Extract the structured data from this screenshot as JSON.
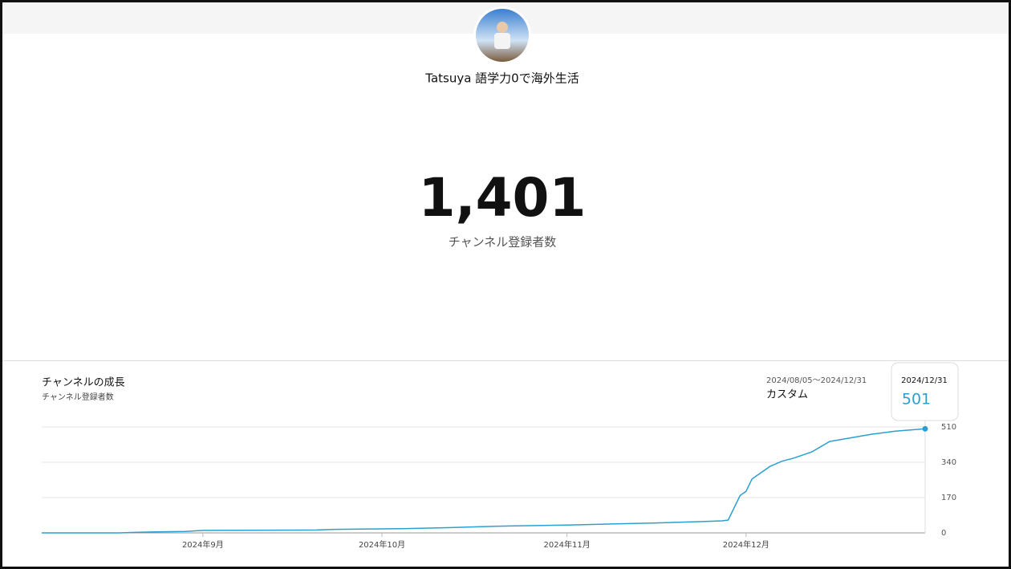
{
  "header": {
    "channel_name": "Tatsuya 語学力0で海外生活"
  },
  "summary": {
    "subscriber_count": "1,401",
    "label": "チャンネル登録者数"
  },
  "chart_data": {
    "type": "line",
    "title": "チャンネルの成長",
    "subtitle": "チャンネル登録者数",
    "date_range": "2024/08/05～2024/12/31",
    "period": "カスタム",
    "x": [
      "2024/08/05",
      "2024/08/18",
      "2024/08/21",
      "2024/08/24",
      "2024/08/29",
      "2024/09/01",
      "2024/09/20",
      "2024/09/23",
      "2024/10/04",
      "2024/10/12",
      "2024/10/20",
      "2024/11/01",
      "2024/11/16",
      "2024/11/27",
      "2024/11/28",
      "2024/11/30",
      "2024/12/01",
      "2024/12/02",
      "2024/12/05",
      "2024/12/07",
      "2024/12/09",
      "2024/12/12",
      "2024/12/15",
      "2024/12/18",
      "2024/12/22",
      "2024/12/26",
      "2024/12/31"
    ],
    "series": [
      {
        "color": "#2c9fd1",
        "values": [
          0,
          0,
          3,
          5,
          7,
          12,
          14,
          17,
          20,
          25,
          32,
          38,
          48,
          58,
          62,
          180,
          200,
          260,
          320,
          345,
          360,
          390,
          440,
          455,
          475,
          490,
          501
        ]
      }
    ],
    "xlim": [
      "2024/08/05",
      "2024/12/31"
    ],
    "xticks": [
      {
        "value": "2024/09/01",
        "label": "2024年9月"
      },
      {
        "value": "2024/10/01",
        "label": "2024年10月"
      },
      {
        "value": "2024/11/01",
        "label": "2024年11月"
      },
      {
        "value": "2024/12/01",
        "label": "2024年12月"
      }
    ],
    "ylim": [
      0,
      510
    ],
    "yticks": [
      0,
      170,
      340,
      510
    ],
    "y_axis_side": "right",
    "grid": true
  }
}
